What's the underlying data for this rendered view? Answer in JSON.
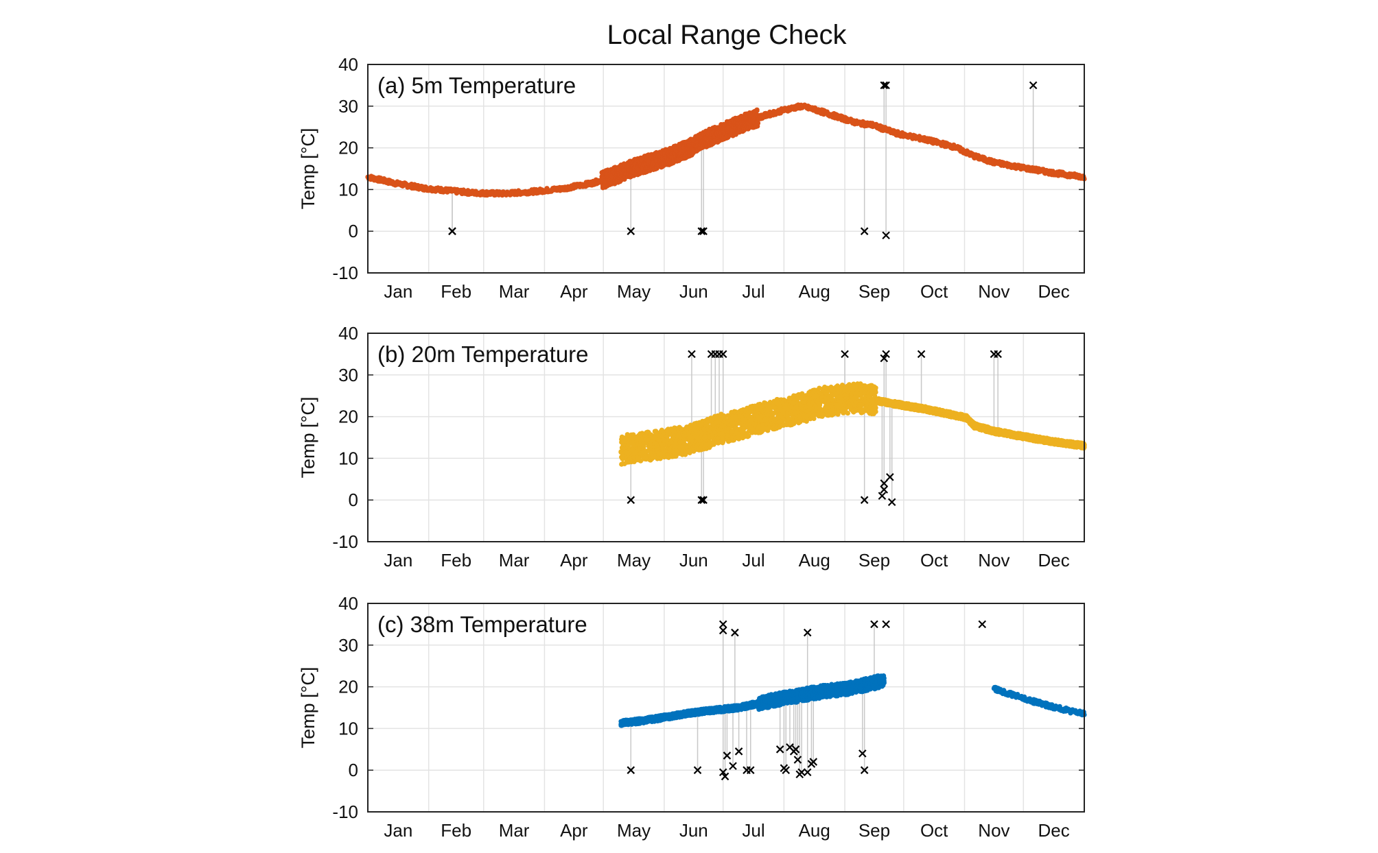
{
  "chart_data": {
    "type": "scatter",
    "title": "Local Range Check",
    "x_tick_labels": [
      "Jan",
      "Feb",
      "Mar",
      "Apr",
      "May",
      "Jun",
      "Jul",
      "Aug",
      "Sep",
      "Oct",
      "Nov",
      "Dec"
    ],
    "y_tick_labels": [
      "40",
      "30",
      "20",
      "10",
      "0",
      "-10"
    ],
    "ylim": [
      -10,
      40
    ],
    "xlim_day_of_year": [
      1,
      366
    ],
    "grid": true,
    "colors": {
      "p5m": "#d95319",
      "p20m": "#edb120",
      "p38m": "#0072bd",
      "flag": "#000000",
      "flag_link": "#c8c8c8"
    },
    "panels": [
      {
        "id": "a",
        "label": "(a) 5m Temperature",
        "ylabel": "Temp [°C]",
        "color": "#d95319",
        "trace": [
          [
            1,
            13
          ],
          [
            15,
            11.5
          ],
          [
            30,
            10.3
          ],
          [
            45,
            9.6
          ],
          [
            55,
            9.2
          ],
          [
            70,
            9
          ],
          [
            85,
            9.5
          ],
          [
            100,
            10.2
          ],
          [
            115,
            11.5
          ],
          [
            125,
            13
          ],
          [
            135,
            15
          ],
          [
            145,
            16.5
          ],
          [
            155,
            18
          ],
          [
            165,
            20
          ],
          [
            175,
            22.5
          ],
          [
            185,
            24.5
          ],
          [
            195,
            26.5
          ],
          [
            205,
            28
          ],
          [
            215,
            29.3
          ],
          [
            222,
            30
          ],
          [
            230,
            29
          ],
          [
            240,
            27.5
          ],
          [
            250,
            26
          ],
          [
            258,
            25.5
          ],
          [
            270,
            23.5
          ],
          [
            285,
            22
          ],
          [
            300,
            20.2
          ],
          [
            310,
            18
          ],
          [
            320,
            16.5
          ],
          [
            335,
            15.2
          ],
          [
            350,
            14
          ],
          [
            366,
            13
          ]
        ],
        "flags": [
          [
            44,
            0
          ],
          [
            44,
            0
          ],
          [
            135,
            0
          ],
          [
            171,
            0
          ],
          [
            172,
            0
          ],
          [
            254,
            0
          ],
          [
            265,
            -1
          ],
          [
            264,
            35
          ],
          [
            265,
            35
          ],
          [
            340,
            35
          ]
        ]
      },
      {
        "id": "b",
        "label": "(b) 20m Temperature",
        "ylabel": "Temp [°C]",
        "color": "#edb120",
        "trace": [
          [
            130,
            12
          ],
          [
            145,
            13
          ],
          [
            160,
            14
          ],
          [
            172,
            15.5
          ],
          [
            180,
            17
          ],
          [
            190,
            18
          ],
          [
            200,
            19.5
          ],
          [
            212,
            21
          ],
          [
            222,
            22
          ],
          [
            232,
            23.5
          ],
          [
            240,
            24
          ],
          [
            250,
            24.5
          ],
          [
            258,
            24
          ],
          [
            270,
            23
          ],
          [
            285,
            21.8
          ],
          [
            300,
            20.3
          ],
          [
            306,
            19.7
          ],
          [
            310,
            17.8
          ],
          [
            320,
            16.5
          ],
          [
            335,
            15.2
          ],
          [
            350,
            14
          ],
          [
            366,
            13
          ]
        ],
        "flags": [
          [
            135,
            0
          ],
          [
            171,
            0
          ],
          [
            172,
            0
          ],
          [
            254,
            0
          ],
          [
            263,
            1
          ],
          [
            264,
            2.5
          ],
          [
            264,
            4
          ],
          [
            267,
            5.5
          ],
          [
            268,
            -0.5
          ],
          [
            166,
            35
          ],
          [
            176,
            35
          ],
          [
            178,
            35
          ],
          [
            180,
            35
          ],
          [
            182,
            35
          ],
          [
            244,
            35
          ],
          [
            264,
            34
          ],
          [
            265,
            35
          ],
          [
            283,
            35
          ],
          [
            320,
            35
          ],
          [
            322,
            35
          ]
        ]
      },
      {
        "id": "c",
        "label": "(c) 38m Temperature",
        "ylabel": "Temp [°C]",
        "color": "#0072bd",
        "trace": [
          [
            130,
            11.3
          ],
          [
            140,
            11.8
          ],
          [
            150,
            12.5
          ],
          [
            160,
            13.3
          ],
          [
            170,
            14
          ],
          [
            180,
            14.5
          ],
          [
            190,
            15
          ],
          [
            200,
            16
          ],
          [
            210,
            17
          ],
          [
            220,
            17.8
          ],
          [
            228,
            18.5
          ],
          [
            235,
            19
          ],
          [
            245,
            19.5
          ],
          [
            255,
            20.5
          ],
          [
            264,
            21.5
          ]
        ],
        "trace2": [
          [
            320,
            19.5
          ],
          [
            330,
            18
          ],
          [
            340,
            16.5
          ],
          [
            350,
            15.2
          ],
          [
            358,
            14.3
          ],
          [
            366,
            13.5
          ]
        ],
        "flags": [
          [
            135,
            0
          ],
          [
            169,
            0
          ],
          [
            182,
            -0.5
          ],
          [
            183,
            -1.5
          ],
          [
            184,
            3.5
          ],
          [
            187,
            1
          ],
          [
            190,
            4.5
          ],
          [
            194,
            0
          ],
          [
            196,
            0
          ],
          [
            211,
            5
          ],
          [
            213,
            0.5
          ],
          [
            214,
            0
          ],
          [
            216,
            5.5
          ],
          [
            218,
            4.5
          ],
          [
            219,
            5
          ],
          [
            220,
            2.5
          ],
          [
            221,
            -1
          ],
          [
            222,
            -0.5
          ],
          [
            225,
            -0.5
          ],
          [
            227,
            1.5
          ],
          [
            228,
            2
          ],
          [
            253,
            4
          ],
          [
            254,
            0
          ],
          [
            182,
            35
          ],
          [
            182,
            33.5
          ],
          [
            188,
            33
          ],
          [
            225,
            33
          ],
          [
            259,
            35
          ],
          [
            265,
            35
          ],
          [
            314,
            35
          ]
        ]
      }
    ]
  }
}
